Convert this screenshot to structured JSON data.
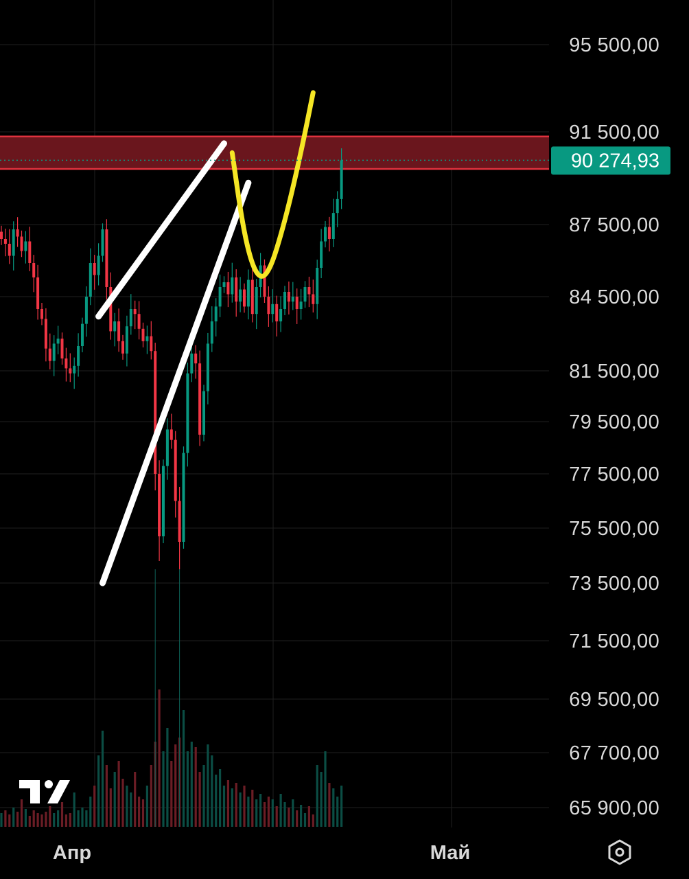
{
  "chart_data": {
    "type": "candlestick",
    "y_axis": {
      "ticks": [
        {
          "value": 95500,
          "label": "95 500,00"
        },
        {
          "value": 91500,
          "label": "91 500,00"
        },
        {
          "value": 87500,
          "label": "87 500,00"
        },
        {
          "value": 84500,
          "label": "84 500,00"
        },
        {
          "value": 81500,
          "label": "81 500,00"
        },
        {
          "value": 79500,
          "label": "79 500,00"
        },
        {
          "value": 77500,
          "label": "77 500,00"
        },
        {
          "value": 75500,
          "label": "75 500,00"
        },
        {
          "value": 73500,
          "label": "73 500,00"
        },
        {
          "value": 71500,
          "label": "71 500,00"
        },
        {
          "value": 69500,
          "label": "69 500,00"
        },
        {
          "value": 67700,
          "label": "67 700,00"
        },
        {
          "value": 65900,
          "label": "65 900,00"
        }
      ]
    },
    "x_axis": {
      "labels": [
        "Апр",
        "Май"
      ]
    },
    "current_price": {
      "value": 90274.93,
      "label": "90 274,93",
      "color": "#089981"
    },
    "resistance_zone": {
      "from": 89900,
      "to": 91300,
      "color": "#f23645"
    },
    "price_series_close": [
      86900,
      86700,
      86200,
      87300,
      87000,
      86400,
      86800,
      85900,
      85300,
      84000,
      83600,
      82400,
      81900,
      82600,
      82800,
      82000,
      81600,
      81400,
      81700,
      82500,
      83400,
      84500,
      85900,
      85400,
      86200,
      87300,
      84900,
      83100,
      83500,
      82700,
      82200,
      83300,
      84000,
      83800,
      83200,
      82700,
      82900,
      82300,
      77500,
      75200,
      77800,
      79200,
      78800,
      76500,
      75000,
      78300,
      81400,
      82200,
      81800,
      79000,
      80700,
      82600,
      83500,
      84100,
      84900,
      85100,
      84600,
      85300,
      84300,
      84800,
      84100,
      85200,
      83800,
      84900,
      85800,
      84500,
      83800,
      84200,
      83500,
      84000,
      84700,
      84300,
      84500,
      84000,
      84300,
      84900,
      84600,
      84200,
      85700,
      86800,
      87400,
      86900,
      88000,
      88600,
      90270
    ],
    "volume_relative": [
      0.1,
      0.12,
      0.09,
      0.14,
      0.11,
      0.2,
      0.13,
      0.08,
      0.12,
      0.1,
      0.09,
      0.11,
      0.15,
      0.1,
      0.12,
      0.18,
      0.09,
      0.1,
      0.25,
      0.12,
      0.14,
      0.12,
      0.22,
      0.3,
      0.52,
      0.7,
      0.45,
      0.28,
      0.4,
      0.48,
      0.35,
      0.3,
      0.25,
      0.4,
      0.22,
      0.2,
      0.3,
      0.45,
      0.62,
      1.0,
      0.55,
      0.72,
      0.48,
      0.6,
      0.65,
      0.85,
      0.55,
      0.62,
      0.58,
      0.4,
      0.45,
      0.6,
      0.52,
      0.38,
      0.42,
      0.3,
      0.34,
      0.28,
      0.32,
      0.25,
      0.3,
      0.22,
      0.27,
      0.2,
      0.24,
      0.18,
      0.22,
      0.2,
      0.15,
      0.24,
      0.18,
      0.14,
      0.2,
      0.12,
      0.16,
      0.1,
      0.15,
      0.09,
      0.45,
      0.4,
      0.55,
      0.32,
      0.28,
      0.22,
      0.3
    ],
    "annotations": [
      {
        "type": "trend-line",
        "color": "#ffffff",
        "from": {
          "bar": 24,
          "price": 83700
        },
        "to": {
          "bar": 55,
          "price": 91000
        }
      },
      {
        "type": "trend-line",
        "color": "#ffffff",
        "from": {
          "bar": 25,
          "price": 73500
        },
        "to": {
          "bar": 61,
          "price": 89300
        }
      },
      {
        "type": "projection-curve",
        "color": "#f5e625",
        "points": [
          {
            "bar": 57,
            "price": 90600
          },
          {
            "bar": 60,
            "price": 87000
          },
          {
            "bar": 63,
            "price": 85300
          },
          {
            "bar": 66,
            "price": 85400
          },
          {
            "bar": 70,
            "price": 87600
          },
          {
            "bar": 74,
            "price": 90600
          },
          {
            "bar": 77,
            "price": 93300
          }
        ]
      }
    ],
    "grid": true
  },
  "icons": {
    "logo": "tradingview-logo",
    "settings": "settings-hexagon-icon"
  },
  "colors": {
    "up": "#089981",
    "down": "#f23645",
    "grid": "#1f1f1f",
    "background": "#000000"
  }
}
